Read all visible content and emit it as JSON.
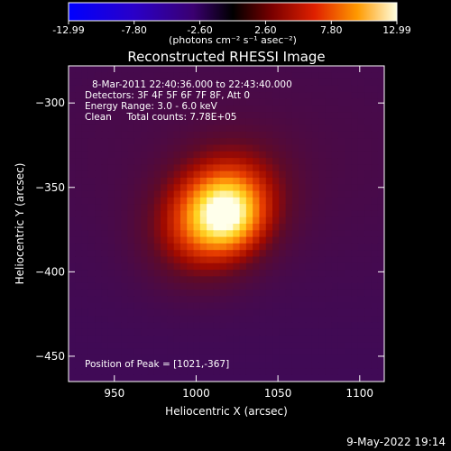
{
  "colorbar": {
    "ticks": [
      "-12.99",
      "-7.80",
      "-2.60",
      "2.60",
      "7.80",
      "12.99"
    ],
    "min": -12.99,
    "max": 12.99,
    "unit_label": "(photons cm⁻² s⁻¹ asec⁻²)"
  },
  "title": "Reconstructed RHESSI Image",
  "info_lines": [
    "8-Mar-2011 22:40:36.000 to 22:43:40.000",
    "Detectors: 3F 4F 5F 6F 7F 8F, Att 0",
    "Energy Range: 3.0 - 6.0 keV",
    "Clean     Total counts: 7.78E+05"
  ],
  "peak_label": "Position of Peak = [1021,-367]",
  "footer_date": "9-May-2022 19:14",
  "chart_data": {
    "type": "heatmap",
    "title": "Reconstructed RHESSI Image",
    "xlabel": "Heliocentric X (arcsec)",
    "ylabel": "Heliocentric Y (arcsec)",
    "xlim": [
      922,
      1115
    ],
    "ylim": [
      -465,
      -278
    ],
    "x_ticks": [
      950,
      1000,
      1050,
      1100
    ],
    "y_ticks": [
      -300,
      -350,
      -400,
      -450
    ],
    "peak": {
      "x": 1021,
      "y": -367
    },
    "source_axes": {
      "major": 105,
      "minor": 85,
      "angle_deg": 40
    },
    "background_value": 2.0,
    "peak_value": 12.99
  }
}
